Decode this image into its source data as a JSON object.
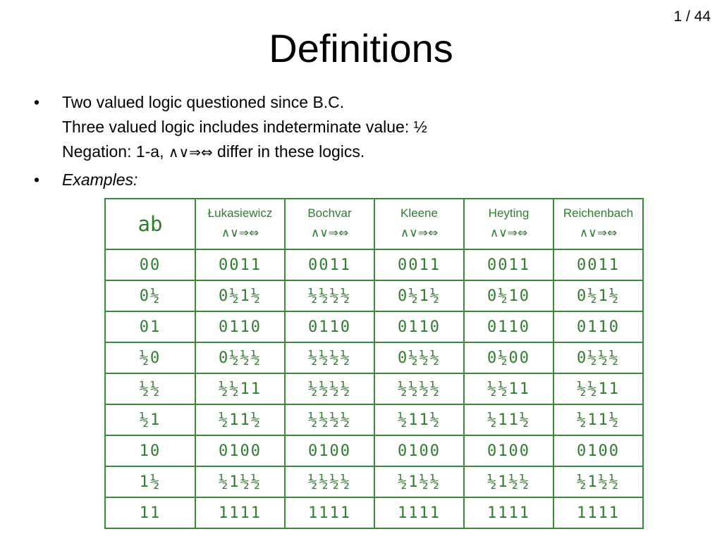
{
  "slide": {
    "page_counter": "1 / 44",
    "title": "Definitions"
  },
  "bullets": [
    {
      "marker": "•",
      "lines": [
        "Two valued logic questioned since B.C.",
        "Three valued logic includes indeterminate value: ½"
      ],
      "line3_prefix": "Negation: 1-a, ",
      "line3_symbols": "∧∨⇒⇔",
      "line3_suffix": " differ in these logics."
    },
    {
      "marker": "•",
      "text": "Examples:"
    }
  ],
  "table": {
    "header": [
      {
        "name": "ab",
        "ops": ""
      },
      {
        "name": "Łukasiewicz",
        "ops": "∧∨⇒⇔"
      },
      {
        "name": "Bochvar",
        "ops": "∧∨⇒⇔"
      },
      {
        "name": "Kleene",
        "ops": "∧∨⇒⇔"
      },
      {
        "name": "Heyting",
        "ops": "∧∨⇒⇔"
      },
      {
        "name": "Reichenbach",
        "ops": "∧∨⇒⇔"
      }
    ],
    "rows": [
      [
        "00",
        "0011",
        "0011",
        "0011",
        "0011",
        "0011"
      ],
      [
        "0½",
        "0½1½",
        "½½½½",
        "0½1½",
        "0½10",
        "0½1½"
      ],
      [
        "01",
        "0110",
        "0110",
        "0110",
        "0110",
        "0110"
      ],
      [
        "½0",
        "0½½½",
        "½½½½",
        "0½½½",
        "0½00",
        "0½½½"
      ],
      [
        "½½",
        "½½11",
        "½½½½",
        "½½½½",
        "½½11",
        "½½11"
      ],
      [
        "½1",
        "½11½",
        "½½½½",
        "½11½",
        "½11½",
        "½11½"
      ],
      [
        "10",
        "0100",
        "0100",
        "0100",
        "0100",
        "0100"
      ],
      [
        "1½",
        "½1½½",
        "½½½½",
        "½1½½",
        "½1½½",
        "½1½½"
      ],
      [
        "11",
        "1111",
        "1111",
        "1111",
        "1111",
        "1111"
      ]
    ]
  },
  "colors": {
    "table_text": "#2e7d2e",
    "table_border": "#3a8a3a"
  }
}
